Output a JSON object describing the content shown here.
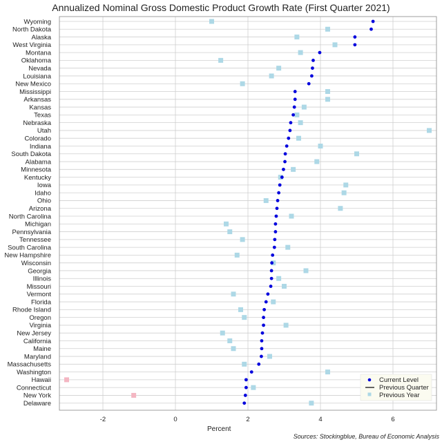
{
  "chart_data": {
    "type": "scatter",
    "title": "Annualized Nominal Gross Domestic Product Growth Rate (First Quarter 2021)",
    "xlabel": "Percent",
    "ylabel": "",
    "xlim": [
      -3.2,
      7.2
    ],
    "xticks": [
      -2,
      0,
      2,
      4,
      6
    ],
    "grid": true,
    "legend_position": "bottom-right",
    "source": "Sources: Stockingblue, Bureau of Economic Analysis",
    "legend": [
      {
        "name": "Current Level",
        "color": "#0000dd",
        "marker": "dot"
      },
      {
        "name": "Previous Quarter",
        "color": "#000000",
        "marker": "line"
      },
      {
        "name": "Previous Year",
        "color": "#add8e6",
        "marker": "square"
      }
    ],
    "colors": {
      "current": "#0000dd",
      "previous_year_positive": "#add8e6",
      "previous_year_negative": "#f4b6c2"
    },
    "categories": [
      "Wyoming",
      "North Dakota",
      "Alaska",
      "West Virginia",
      "Montana",
      "Oklahoma",
      "Nevada",
      "Louisiana",
      "New Mexico",
      "Mississippi",
      "Arkansas",
      "Kansas",
      "Texas",
      "Nebraska",
      "Utah",
      "Colorado",
      "Indiana",
      "South Dakota",
      "Alabama",
      "Minnesota",
      "Kentucky",
      "Iowa",
      "Idaho",
      "Ohio",
      "Arizona",
      "North Carolina",
      "Michigan",
      "Pennsylvania",
      "Tennessee",
      "South Carolina",
      "New Hampshire",
      "Wisconsin",
      "Georgia",
      "Illinois",
      "Missouri",
      "Vermont",
      "Florida",
      "Rhode Island",
      "Oregon",
      "Virginia",
      "New Jersey",
      "California",
      "Maine",
      "Maryland",
      "Massachusetts",
      "Washington",
      "Hawaii",
      "Connecticut",
      "New York",
      "Delaware"
    ],
    "series": [
      {
        "name": "Current Level",
        "values": [
          5.45,
          5.4,
          4.95,
          4.95,
          3.98,
          3.8,
          3.78,
          3.76,
          3.68,
          3.3,
          3.3,
          3.28,
          3.25,
          3.18,
          3.16,
          3.12,
          3.07,
          3.03,
          3.02,
          2.98,
          2.94,
          2.88,
          2.85,
          2.82,
          2.8,
          2.78,
          2.76,
          2.76,
          2.74,
          2.73,
          2.68,
          2.66,
          2.65,
          2.65,
          2.63,
          2.55,
          2.5,
          2.45,
          2.43,
          2.43,
          2.4,
          2.38,
          2.38,
          2.37,
          2.3,
          2.1,
          1.95,
          1.95,
          1.93,
          1.9
        ]
      },
      {
        "name": "Previous Year",
        "values": [
          1.0,
          4.2,
          3.35,
          4.4,
          3.45,
          1.25,
          2.85,
          2.65,
          1.85,
          4.2,
          4.2,
          3.55,
          3.35,
          3.45,
          7.0,
          3.4,
          4.0,
          5.0,
          3.9,
          3.25,
          2.9,
          4.7,
          4.65,
          2.5,
          4.55,
          3.2,
          1.4,
          1.5,
          1.85,
          3.1,
          1.7,
          2.7,
          3.6,
          2.85,
          3.0,
          1.6,
          2.7,
          1.8,
          1.9,
          3.05,
          1.3,
          1.5,
          1.6,
          2.6,
          1.9,
          4.2,
          -3.0,
          2.15,
          -1.15,
          3.75
        ]
      }
    ]
  }
}
